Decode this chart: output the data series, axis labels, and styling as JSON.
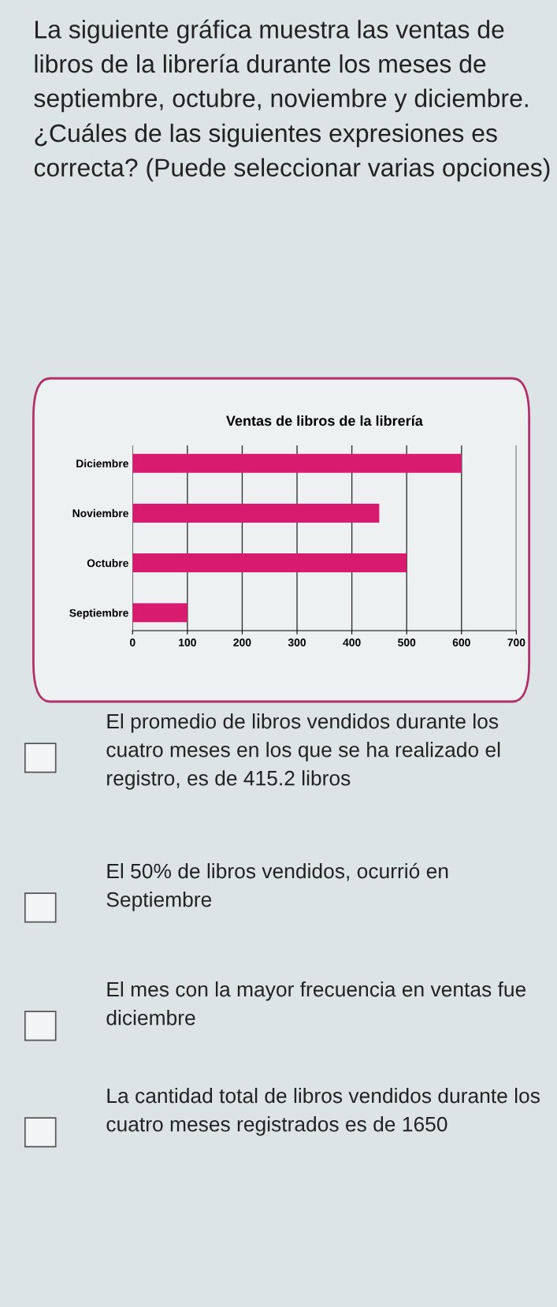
{
  "chart_data": {
    "type": "bar",
    "orientation": "horizontal",
    "title": "Ventas de libros de la librería",
    "categories": [
      "Diciembre",
      "Noviembre",
      "Octubre",
      "Septiembre"
    ],
    "values": [
      600,
      450,
      500,
      100
    ],
    "color": "#d81b6e",
    "xlim": [
      0,
      700
    ],
    "xticks": [
      0,
      100,
      200,
      300,
      400,
      500,
      600,
      700
    ],
    "grid": "x",
    "annotations": [
      "La siguiente gráfica muestra las ventas de libros de la librería durante los meses de septiembre, octubre, noviembre y diciembre. ¿Cuáles de las siguientes expresiones es correcta? (Puede seleccionar varias opciones)",
      "El promedio de libros vendidos durante los cuatro meses en los que se ha realizado el registro, es de 415.2 libros",
      "El 50% de libros vendidos, ocurrió en Septiembre",
      "El mes con la mayor frecuencia en ventas fue diciembre",
      "La cantidad total de libros vendidos durante los cuatro meses registrados es de 1650"
    ]
  }
}
